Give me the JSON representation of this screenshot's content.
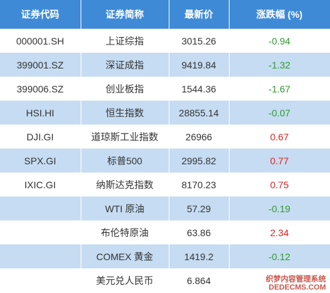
{
  "table": {
    "header": [
      "证券代码",
      "证券简称",
      "最新价",
      "涨跌幅 (%)"
    ],
    "rows": [
      [
        "000001.SH",
        "上证综指",
        "3015.26",
        "-0.94"
      ],
      [
        "399001.SZ",
        "深证成指",
        "9419.84",
        "-1.32"
      ],
      [
        "399006.SZ",
        "创业板指",
        "1544.36",
        "-1.67"
      ],
      [
        "HSI.HI",
        "恒生指数",
        "28855.14",
        "-0.07"
      ],
      [
        "DJI.GI",
        "道琼斯工业指数",
        "26966",
        "0.67"
      ],
      [
        "SPX.GI",
        "标普500",
        "2995.82",
        "0.77"
      ],
      [
        "IXIC.GI",
        "纳斯达克指数",
        "8170.23",
        "0.75"
      ],
      [
        null,
        "WTI 原油",
        "57.29",
        "-0.19"
      ],
      [
        null,
        "布伦特原油",
        "63.86",
        "2.34"
      ],
      [
        null,
        "COMEX 黄金",
        "1419.2",
        "-0.12"
      ],
      [
        null,
        "美元兑人民币",
        "6.864",
        null
      ]
    ]
  },
  "watermark": [
    "织梦内容管理系统",
    "DEDECMS.COM"
  ]
}
